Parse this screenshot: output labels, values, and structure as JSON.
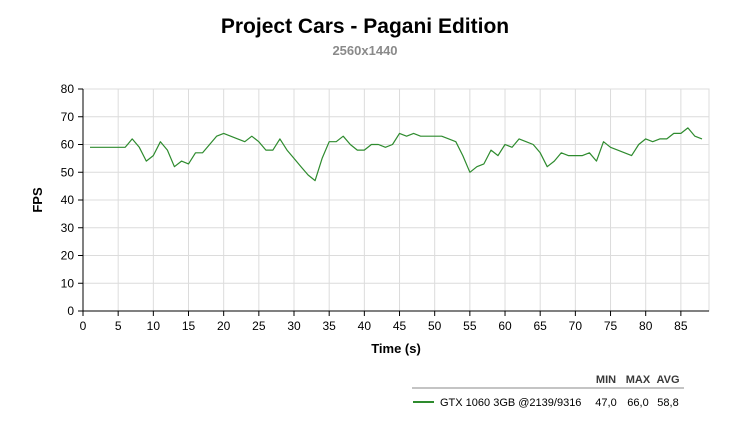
{
  "chart_data": {
    "type": "line",
    "title": "Project Cars - Pagani Edition",
    "subtitle": "2560x1440",
    "xlabel": "Time (s)",
    "ylabel": "FPS",
    "xlim": [
      0,
      89
    ],
    "ylim": [
      0,
      80
    ],
    "x_ticks": [
      0,
      5,
      10,
      15,
      20,
      25,
      30,
      35,
      40,
      45,
      50,
      55,
      60,
      65,
      70,
      75,
      80,
      85
    ],
    "y_ticks": [
      0,
      10,
      20,
      30,
      40,
      50,
      60,
      70,
      80
    ],
    "grid": true,
    "legend_position": "bottom-right",
    "stat_headers": [
      "MIN",
      "MAX",
      "AVG"
    ],
    "series": [
      {
        "name": "GTX 1060 3GB @2139/9316",
        "color": "#2e8b2e",
        "min": "47,0",
        "max": "66,0",
        "avg": "58,8",
        "x": [
          1,
          2,
          3,
          4,
          5,
          6,
          7,
          8,
          9,
          10,
          11,
          12,
          13,
          14,
          15,
          16,
          17,
          18,
          19,
          20,
          21,
          22,
          23,
          24,
          25,
          26,
          27,
          28,
          29,
          30,
          31,
          32,
          33,
          34,
          35,
          36,
          37,
          38,
          39,
          40,
          41,
          42,
          43,
          44,
          45,
          46,
          47,
          48,
          49,
          50,
          51,
          52,
          53,
          54,
          55,
          56,
          57,
          58,
          59,
          60,
          61,
          62,
          63,
          64,
          65,
          66,
          67,
          68,
          69,
          70,
          71,
          72,
          73,
          74,
          75,
          76,
          77,
          78,
          79,
          80,
          81,
          82,
          83,
          84,
          85,
          86,
          87,
          88
        ],
        "values": [
          59,
          59,
          59,
          59,
          59,
          59,
          62,
          59,
          54,
          56,
          61,
          58,
          52,
          54,
          53,
          57,
          57,
          60,
          63,
          64,
          63,
          62,
          61,
          63,
          61,
          58,
          58,
          62,
          58,
          55,
          52,
          49,
          47,
          55,
          61,
          61,
          63,
          60,
          58,
          58,
          60,
          60,
          59,
          60,
          64,
          63,
          64,
          63,
          63,
          63,
          63,
          62,
          61,
          56,
          50,
          52,
          53,
          58,
          56,
          60,
          59,
          62,
          61,
          60,
          57,
          52,
          54,
          57,
          56,
          56,
          56,
          57,
          54,
          61,
          59,
          58,
          57,
          56,
          60,
          62,
          61,
          62,
          62,
          64,
          64,
          66,
          63,
          62
        ]
      }
    ]
  }
}
